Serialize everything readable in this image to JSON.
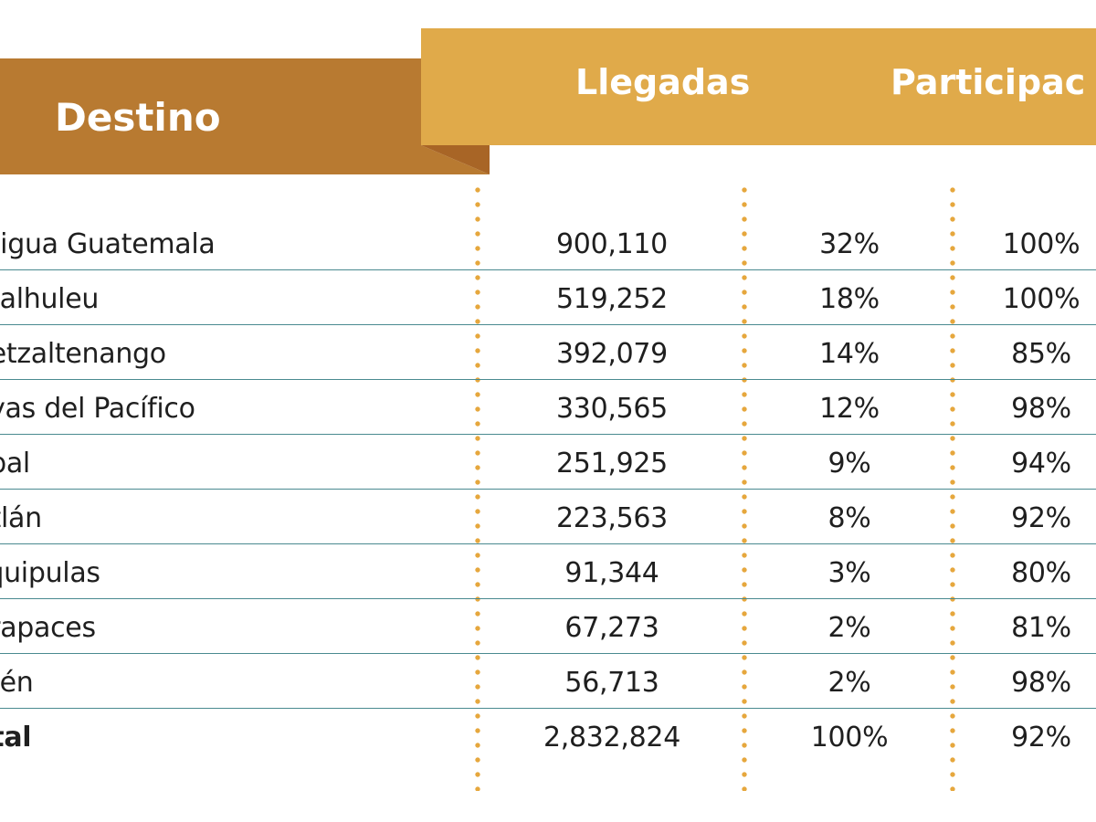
{
  "header": {
    "destino": "Destino",
    "llegadas": "Llegadas",
    "participacion": "Participac"
  },
  "colors": {
    "gold_band": "#e0aa4a",
    "brown_band": "#b87a31",
    "fold": "#a86526",
    "row_divider": "#4a8a90",
    "dotted_separator": "#e6a73d"
  },
  "rows": [
    {
      "destino": "ntigua Guatemala",
      "llegadas": "900,110",
      "participacion": "32%",
      "porcentaje": "100%"
    },
    {
      "destino": "etalhuleu",
      "llegadas": "519,252",
      "participacion": "18%",
      "porcentaje": "100%"
    },
    {
      "destino": "uetzaltenango",
      "llegadas": "392,079",
      "participacion": "14%",
      "porcentaje": "85%"
    },
    {
      "destino": "ayas del Pacífico",
      "llegadas": "330,565",
      "participacion": "12%",
      "porcentaje": "98%"
    },
    {
      "destino": "abal",
      "llegadas": "251,925",
      "participacion": "9%",
      "porcentaje": "94%"
    },
    {
      "destino": "titlán",
      "llegadas": "223,563",
      "participacion": "8%",
      "porcentaje": "92%"
    },
    {
      "destino": "squipulas",
      "llegadas": "91,344",
      "participacion": "3%",
      "porcentaje": "80%"
    },
    {
      "destino": "erapaces",
      "llegadas": "67,273",
      "participacion": "2%",
      "porcentaje": "81%"
    },
    {
      "destino": "etén",
      "llegadas": "56,713",
      "participacion": "2%",
      "porcentaje": "98%"
    }
  ],
  "total": {
    "destino": "otal",
    "llegadas": "2,832,824",
    "participacion": "100%",
    "porcentaje": "92%"
  }
}
